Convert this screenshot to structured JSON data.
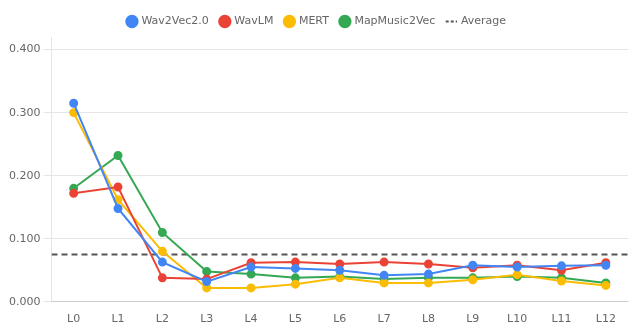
{
  "chart_data": {
    "type": "line",
    "categories": [
      "L0",
      "L1",
      "L2",
      "L3",
      "L4",
      "L5",
      "L6",
      "L7",
      "L8",
      "L9",
      "L10",
      "L11",
      "L12"
    ],
    "series": [
      {
        "name": "Wav2Vec2.0",
        "color": "#4285F4",
        "marker": "circle",
        "values": [
          0.315,
          0.148,
          0.063,
          0.032,
          0.055,
          0.053,
          0.05,
          0.042,
          0.044,
          0.058,
          0.055,
          0.057,
          0.058
        ]
      },
      {
        "name": "WavLM",
        "color": "#EA4335",
        "marker": "circle",
        "values": [
          0.172,
          0.182,
          0.038,
          0.036,
          0.062,
          0.063,
          0.06,
          0.063,
          0.06,
          0.054,
          0.058,
          0.05,
          0.062
        ]
      },
      {
        "name": "MERT",
        "color": "#FBBC04",
        "marker": "circle",
        "values": [
          0.3,
          0.162,
          0.08,
          0.022,
          0.022,
          0.028,
          0.038,
          0.03,
          0.03,
          0.035,
          0.043,
          0.033,
          0.026
        ]
      },
      {
        "name": "MapMusic2Vec",
        "color": "#34A853",
        "marker": "circle",
        "values": [
          0.18,
          0.232,
          0.11,
          0.048,
          0.044,
          0.038,
          0.04,
          0.036,
          0.038,
          0.038,
          0.04,
          0.038,
          0.03
        ]
      }
    ],
    "hlines": [
      {
        "name": "Average",
        "y": 0.075,
        "color": "#555555",
        "line_style": "dashed"
      }
    ],
    "ylim": [
      0.0,
      0.42
    ],
    "yticks": [
      {
        "value": 0.0,
        "label": "0.000"
      },
      {
        "value": 0.1,
        "label": "0.100"
      },
      {
        "value": 0.2,
        "label": "0.200"
      },
      {
        "value": 0.3,
        "label": "0.300"
      },
      {
        "value": 0.4,
        "label": "0.400"
      }
    ],
    "grid": true,
    "legend": "top"
  }
}
